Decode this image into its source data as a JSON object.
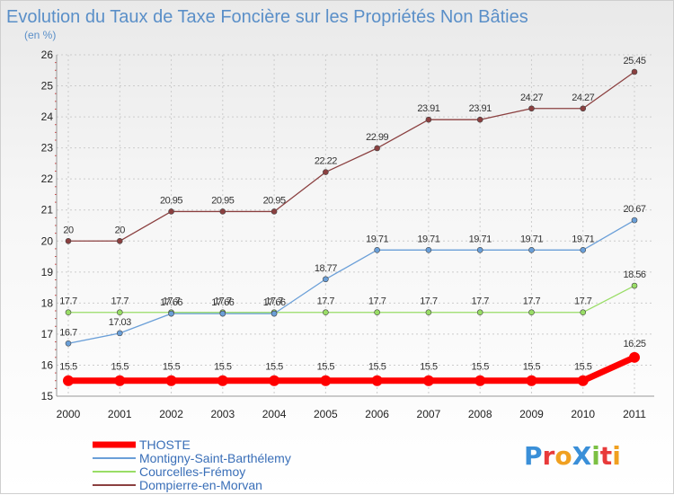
{
  "chart_data": {
    "type": "line",
    "title": "Evolution du Taux de Taxe Foncière sur les Propriétés Non Bâties",
    "subtitle": "(en %)",
    "xlabel": "",
    "ylabel": "",
    "categories": [
      "2000",
      "2001",
      "2002",
      "2003",
      "2004",
      "2005",
      "2006",
      "2007",
      "2008",
      "2009",
      "2010",
      "2011"
    ],
    "ylim": [
      15,
      26
    ],
    "yticks": [
      "15",
      "16",
      "17",
      "18",
      "19",
      "20",
      "21",
      "22",
      "23",
      "24",
      "25",
      "26"
    ],
    "grid": true,
    "legend_position": "bottom-left",
    "series": [
      {
        "name": "THOSTE",
        "color": "#ff0000",
        "values": [
          15.5,
          15.5,
          15.5,
          15.5,
          15.5,
          15.5,
          15.5,
          15.5,
          15.5,
          15.5,
          15.5,
          16.25
        ],
        "labels": [
          "15.5",
          "15.5",
          "15.5",
          "15.5",
          "15.5",
          "15.5",
          "15.5",
          "15.5",
          "15.5",
          "15.5",
          "15.5",
          "16.25"
        ]
      },
      {
        "name": "Montigny-Saint-Barthélemy",
        "color": "#6a9fd8",
        "values": [
          16.7,
          17.03,
          17.66,
          17.66,
          17.66,
          18.77,
          19.71,
          19.71,
          19.71,
          19.71,
          19.71,
          20.67
        ],
        "labels": [
          "16.7",
          "17.03",
          "17.66",
          "17.66",
          "17.66",
          "18.77",
          "19.71",
          "19.71",
          "19.71",
          "19.71",
          "19.71",
          "20.67"
        ]
      },
      {
        "name": "Courcelles-Frémoy",
        "color": "#99dd66",
        "values": [
          17.7,
          17.7,
          17.7,
          17.7,
          17.7,
          17.7,
          17.7,
          17.7,
          17.7,
          17.7,
          17.7,
          18.56
        ],
        "labels": [
          "17.7",
          "17.7",
          "17.7",
          "17.7",
          "17.7",
          "17.7",
          "17.7",
          "17.7",
          "17.7",
          "17.7",
          "17.7",
          "18.56"
        ]
      },
      {
        "name": "Dompierre-en-Morvan",
        "color": "#8b4040",
        "values": [
          20,
          20,
          20.95,
          20.95,
          20.95,
          22.22,
          22.99,
          23.91,
          23.91,
          24.27,
          24.27,
          25.45
        ],
        "labels": [
          "20",
          "20",
          "20.95",
          "20.95",
          "20.95",
          "22.22",
          "22.99",
          "23.91",
          "23.91",
          "24.27",
          "24.27",
          "25.45"
        ]
      }
    ]
  },
  "logo": {
    "text": "ProXiti",
    "letters": [
      "P",
      "r",
      "o",
      "X",
      "i",
      "t",
      "i"
    ],
    "colors": [
      "#3a8fd8",
      "#e83a3a",
      "#f0a020",
      "#3a8fd8",
      "#7bc043",
      "#e83a3a",
      "#f0a020"
    ]
  }
}
